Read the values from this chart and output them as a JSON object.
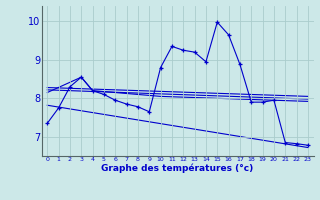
{
  "xlabel": "Graphe des températures (°c)",
  "background_color": "#cce8e8",
  "grid_color": "#aacccc",
  "line_color": "#0000cc",
  "x_ticks": [
    0,
    1,
    2,
    3,
    4,
    5,
    6,
    7,
    8,
    9,
    10,
    11,
    12,
    13,
    14,
    15,
    16,
    17,
    18,
    19,
    20,
    21,
    22,
    23
  ],
  "ylim": [
    6.5,
    10.4
  ],
  "yticks": [
    7,
    8,
    9,
    10
  ],
  "line1": [
    7.35,
    7.75,
    8.3,
    8.55,
    8.2,
    8.1,
    7.95,
    7.85,
    7.78,
    7.65,
    8.8,
    9.35,
    9.25,
    9.2,
    8.95,
    9.98,
    9.65,
    8.88,
    7.9,
    7.9,
    7.95,
    6.85,
    6.82,
    6.78
  ],
  "trend1_x": [
    0,
    23
  ],
  "trend1_y": [
    8.28,
    8.05
  ],
  "trend2_x": [
    0,
    23
  ],
  "trend2_y": [
    8.22,
    7.98
  ],
  "trend3_x": [
    0,
    3,
    4,
    10,
    23
  ],
  "trend3_y": [
    8.15,
    8.55,
    8.2,
    8.05,
    7.92
  ],
  "trend4_x": [
    0,
    23
  ],
  "trend4_y": [
    7.82,
    6.72
  ]
}
